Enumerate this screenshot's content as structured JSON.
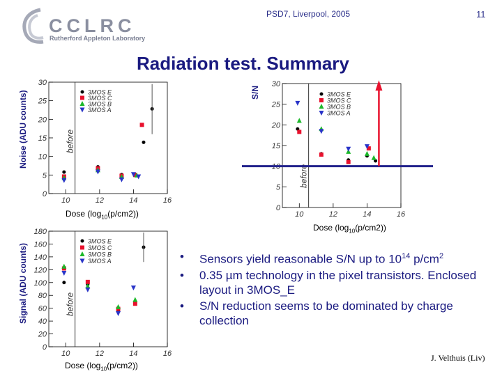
{
  "header": {
    "logo_text": "CCLRC",
    "logo_subtitle": "Rutherford Appleton Laboratory",
    "conference": "PSD7, Liverpool, 2005",
    "slide_number": "11"
  },
  "title": "Radiation test. Summary",
  "colors": {
    "title": "#1a1a80",
    "series": [
      "#000000",
      "#e8112d",
      "#1cb82a",
      "#2a35c8"
    ],
    "threshold_line": "#23238c",
    "arrow": "#e8112d"
  },
  "chart_data": [
    {
      "type": "scatter",
      "name": "noise",
      "ylabel": "Noise (ADU counts)",
      "xlabel_parts": [
        "Dose (log",
        "10",
        "(p/cm2))"
      ],
      "xlim": [
        9,
        16
      ],
      "ylim": [
        0,
        30
      ],
      "xticks": [
        "10",
        "12",
        "14",
        "16"
      ],
      "yticks": [
        "0",
        "5",
        "10",
        "15",
        "20",
        "25",
        "30"
      ],
      "annotation": "before",
      "series": [
        {
          "name": "3MOS E",
          "color": "#000000",
          "x": [
            9.9,
            11.9,
            13.3,
            14.1,
            14.6,
            15.1
          ],
          "y": [
            5.8,
            7.2,
            5.1,
            5.2,
            13.8,
            22.8
          ]
        },
        {
          "name": "3MOS C",
          "color": "#e8112d",
          "x": [
            9.9,
            11.9,
            13.3,
            14.1,
            14.5
          ],
          "y": [
            4.6,
            6.8,
            4.8,
            5.0,
            18.5
          ]
        },
        {
          "name": "3MOS B",
          "color": "#1cb82a",
          "x": [
            9.9,
            11.9,
            13.3,
            14.2
          ],
          "y": [
            4.2,
            6.3,
            4.5,
            4.9
          ]
        },
        {
          "name": "3MOS A",
          "color": "#2a35c8",
          "x": [
            9.9,
            11.9,
            13.3,
            14.0,
            14.3
          ],
          "y": [
            3.6,
            5.9,
            3.8,
            5.2,
            4.6
          ]
        }
      ]
    },
    {
      "type": "scatter",
      "name": "sn",
      "ylabel": "S/N",
      "xlabel_parts": [
        "Dose (log",
        "10",
        "(p/cm2))"
      ],
      "xlim": [
        9,
        16
      ],
      "ylim": [
        0,
        30
      ],
      "xticks": [
        "10",
        "12",
        "14",
        "16"
      ],
      "yticks": [
        "0",
        "5",
        "10",
        "15",
        "20",
        "25",
        "30"
      ],
      "annotation": "before",
      "threshold": 10,
      "series": [
        {
          "name": "3MOS E",
          "color": "#000000",
          "x": [
            9.9,
            11.3,
            12.9,
            14.0,
            14.5
          ],
          "y": [
            19.0,
            13.0,
            11.5,
            12.5,
            11.3
          ]
        },
        {
          "name": "3MOS C",
          "color": "#e8112d",
          "x": [
            10.0,
            11.3,
            12.9,
            14.1
          ],
          "y": [
            18.3,
            12.8,
            11.0,
            14.3
          ]
        },
        {
          "name": "3MOS B",
          "color": "#1cb82a",
          "x": [
            10.0,
            11.3,
            12.9,
            14.0,
            14.4
          ],
          "y": [
            21.0,
            19.0,
            13.5,
            13.0,
            12.0
          ]
        },
        {
          "name": "3MOS A",
          "color": "#2a35c8",
          "x": [
            9.9,
            11.3,
            12.9,
            14.0
          ],
          "y": [
            25.3,
            18.5,
            14.2,
            14.8
          ]
        }
      ]
    },
    {
      "type": "scatter",
      "name": "signal",
      "ylabel": "Signal (ADU counts)",
      "xlabel_parts": [
        "Dose (log",
        "10",
        "(p/cm2))"
      ],
      "xlim": [
        9,
        16
      ],
      "ylim": [
        0,
        180
      ],
      "xticks": [
        "10",
        "12",
        "14",
        "16"
      ],
      "yticks": [
        "0",
        "20",
        "40",
        "60",
        "80",
        "100",
        "120",
        "140",
        "160",
        "180"
      ],
      "annotation": "before",
      "series": [
        {
          "name": "3MOS E",
          "color": "#000000",
          "x": [
            9.9,
            11.3,
            13.1,
            14.1,
            14.6
          ],
          "y": [
            100,
            97,
            56,
            70,
            155
          ]
        },
        {
          "name": "3MOS C",
          "color": "#e8112d",
          "x": [
            9.9,
            11.3,
            13.1,
            14.1
          ],
          "y": [
            122,
            101,
            59,
            67
          ]
        },
        {
          "name": "3MOS B",
          "color": "#1cb82a",
          "x": [
            9.9,
            11.3,
            13.1,
            14.1
          ],
          "y": [
            125,
            94,
            62,
            73
          ]
        },
        {
          "name": "3MOS A",
          "color": "#2a35c8",
          "x": [
            9.9,
            11.3,
            13.1,
            14.0
          ],
          "y": [
            115,
            89,
            52,
            92
          ]
        }
      ]
    }
  ],
  "bullets": [
    {
      "parts": [
        "Sensors yield reasonable S/N up to 10",
        "14",
        " p/cm",
        "2",
        ""
      ]
    },
    {
      "text": "0.35 µm technology in the pixel transistors. Enclosed layout in 3MOS_E"
    },
    {
      "text": "S/N reduction seems to be dominated by charge collection"
    }
  ],
  "bullet_symbol": "•",
  "author": "J. Velthuis (Liv)"
}
